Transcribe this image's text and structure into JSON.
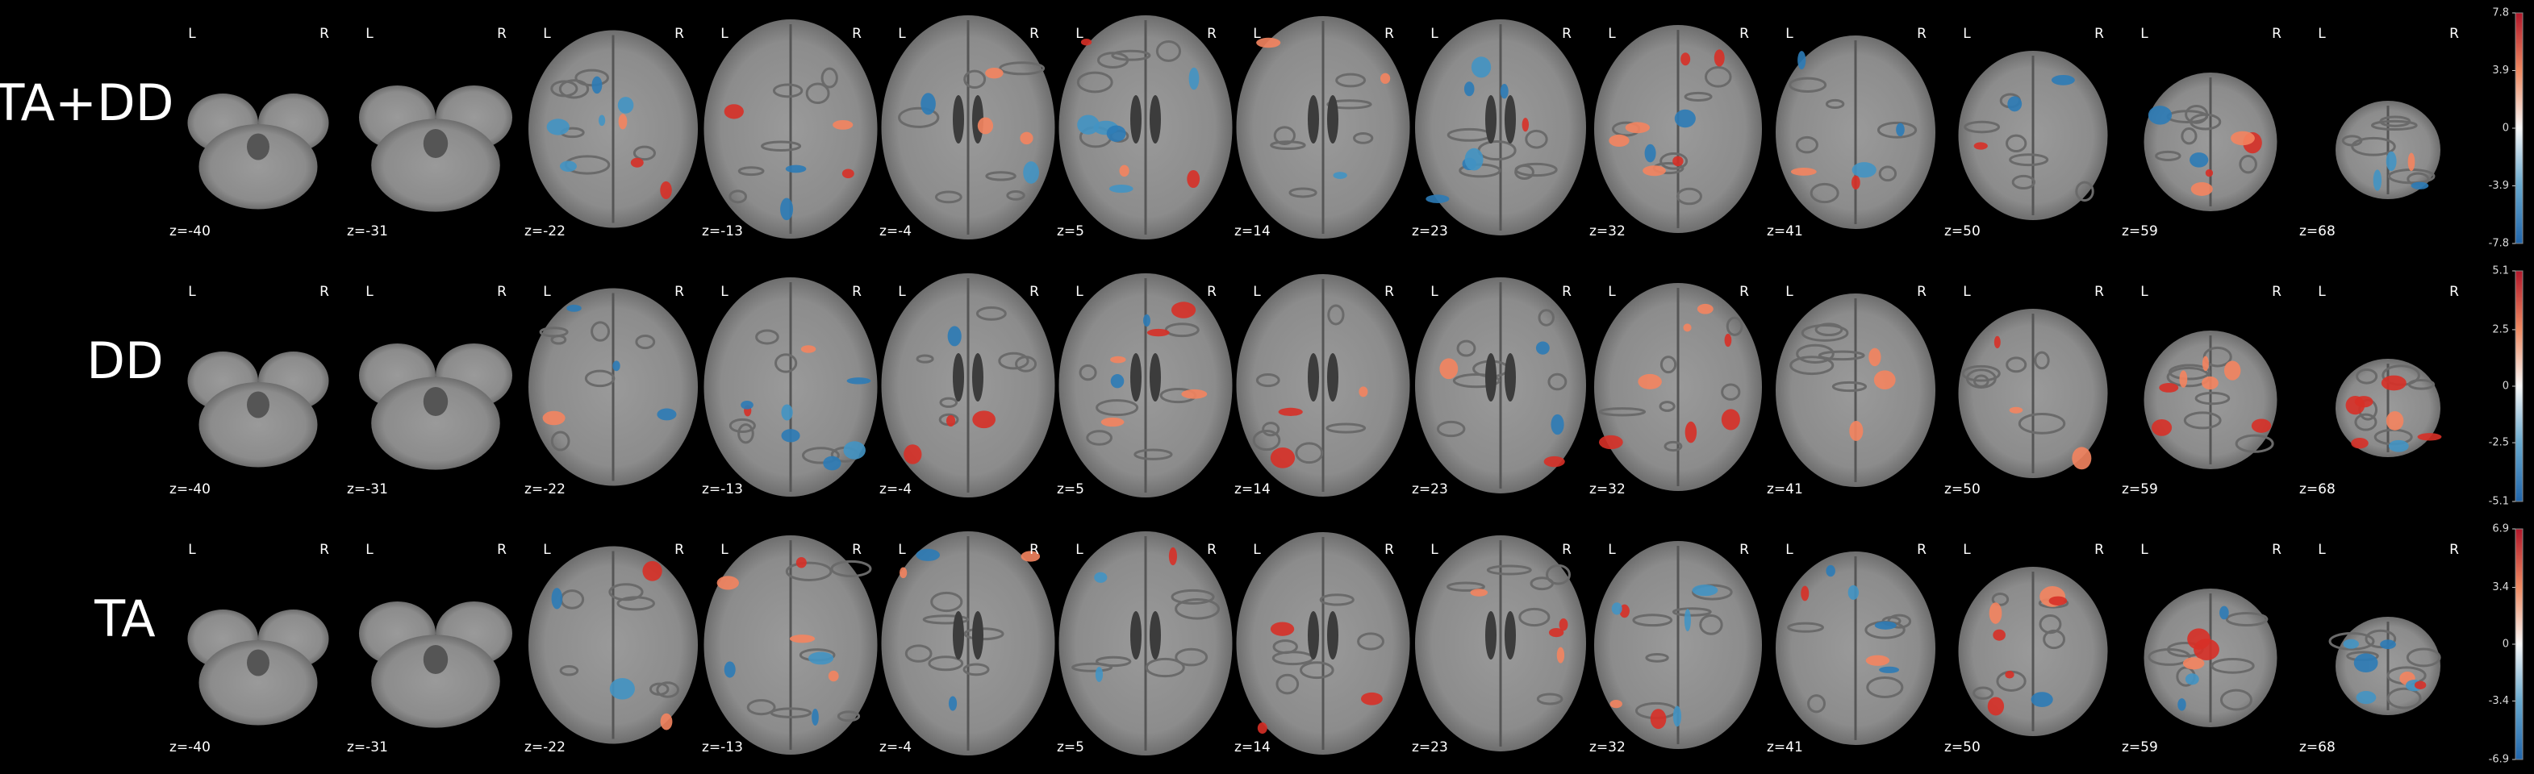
{
  "orientation": {
    "left": "L",
    "right": "R"
  },
  "rows": [
    {
      "label": "TA+DD",
      "colorbar": {
        "lim": [
          -7.8,
          7.8
        ],
        "ticks": [
          7.8,
          3.9,
          0,
          -3.9,
          -7.8
        ]
      },
      "slices": [
        "z=-40",
        "z=-31",
        "z=-22",
        "z=-13",
        "z=-4",
        "z=5",
        "z=14",
        "z=23",
        "z=32",
        "z=41",
        "z=50",
        "z=59",
        "z=68"
      ]
    },
    {
      "label": "DD",
      "colorbar": {
        "lim": [
          -5.1,
          5.1
        ],
        "ticks": [
          5.1,
          2.5,
          0,
          -2.5,
          -5.1
        ]
      },
      "slices": [
        "z=-40",
        "z=-31",
        "z=-22",
        "z=-13",
        "z=-4",
        "z=5",
        "z=14",
        "z=23",
        "z=32",
        "z=41",
        "z=50",
        "z=59",
        "z=68"
      ]
    },
    {
      "label": "TA",
      "colorbar": {
        "lim": [
          -6.9,
          6.9
        ],
        "ticks": [
          6.9,
          3.4,
          0,
          -3.4,
          -6.9
        ]
      },
      "slices": [
        "z=-40",
        "z=-31",
        "z=-22",
        "z=-13",
        "z=-4",
        "z=5",
        "z=14",
        "z=23",
        "z=32",
        "z=41",
        "z=50",
        "z=59",
        "z=68"
      ]
    }
  ]
}
